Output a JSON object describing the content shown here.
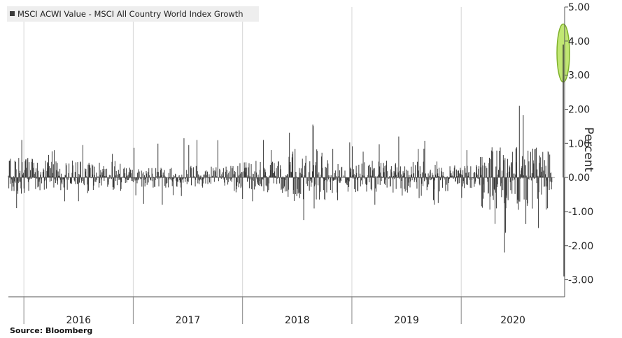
{
  "source_text": "Source: Bloomberg",
  "chart_data": {
    "type": "bar",
    "legend": {
      "label": "MSCI ACWI Value - MSCI All Country World Index Growth",
      "placement": "top-left"
    },
    "ylabel": "Percent",
    "ylim": [
      -3.5,
      5.0
    ],
    "y_ticks": [
      5,
      4,
      3,
      2,
      1,
      0,
      -1,
      -2,
      -3
    ],
    "y_tick_labels": [
      "5.00",
      "4.00",
      "3.00",
      "2.00",
      "1.00",
      "0.00",
      "-1.00",
      "-2.00",
      "-3.00"
    ],
    "x_categories": [
      "2016",
      "2017",
      "2018",
      "2019",
      "2020"
    ],
    "grid": {
      "vertical": true,
      "horizontal": false
    },
    "annotation": {
      "description": "highlight",
      "x": "2020-11",
      "y_range": [
        2.8,
        4.5
      ],
      "color": "#b6e35a"
    },
    "colors": {
      "bars": "#3a3a3a",
      "grid": "#d6d6d6",
      "highlight": "#b6e35a"
    },
    "periods": [
      {
        "start": "2015-11",
        "end": "2016-02",
        "typ_high": 0.6,
        "typ_low": -0.5,
        "max": 1.1,
        "min": -0.9
      },
      {
        "start": "2016-02",
        "end": "2016-12",
        "typ_high": 0.5,
        "typ_low": -0.4,
        "max": 0.95,
        "min": -0.7
      },
      {
        "start": "2016-12",
        "end": "2017-12",
        "typ_high": 0.35,
        "typ_low": -0.3,
        "max": 1.15,
        "min": -0.8
      },
      {
        "start": "2017-12",
        "end": "2018-06",
        "typ_high": 0.5,
        "typ_low": -0.45,
        "max": 1.1,
        "min": -0.7
      },
      {
        "start": "2018-06",
        "end": "2018-11",
        "typ_high": 0.85,
        "typ_low": -0.75,
        "max": 1.55,
        "min": -1.25
      },
      {
        "start": "2018-11",
        "end": "2019-12",
        "typ_high": 0.5,
        "typ_low": -0.45,
        "max": 1.2,
        "min": -0.8
      },
      {
        "start": "2019-12",
        "end": "2020-03",
        "typ_high": 0.4,
        "typ_low": -0.35,
        "max": 0.8,
        "min": -0.6
      },
      {
        "start": "2020-03",
        "end": "2020-11",
        "typ_high": 0.9,
        "typ_low": -0.95,
        "max": 2.1,
        "min": -2.2
      },
      {
        "start": "2020-11",
        "end": "2020-11",
        "typ_high": 3.9,
        "typ_low": -2.9,
        "max": 3.9,
        "min": -2.9
      }
    ]
  }
}
